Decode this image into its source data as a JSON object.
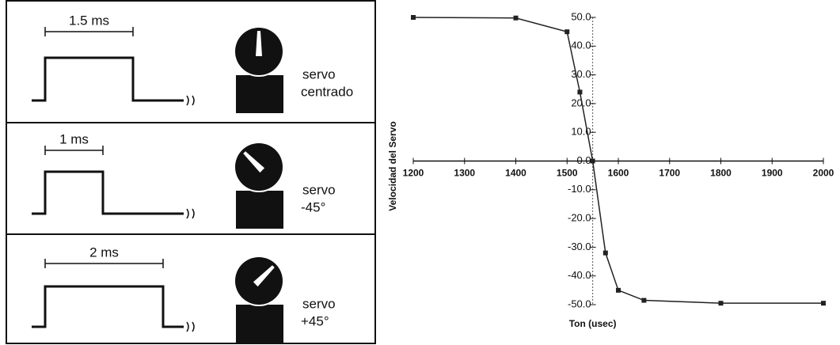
{
  "panels": [
    {
      "pulse": "1.5 ms",
      "servo": "servo",
      "position": "centrado"
    },
    {
      "pulse": "1 ms",
      "servo": "servo",
      "position": "-45°"
    },
    {
      "pulse": "2 ms",
      "servo": "servo",
      "position": "+45°"
    }
  ],
  "chart_data": {
    "type": "line",
    "x_label": "Ton (usec)",
    "y_label": "Velocidad del Servo",
    "x": [
      1200,
      1400,
      1500,
      1525,
      1550,
      1575,
      1600,
      1650,
      1800,
      2000
    ],
    "series": [
      {
        "color": "#222222",
        "values": [
          50,
          49.8,
          45,
          24,
          0,
          -32,
          -45,
          -48.5,
          -49.5,
          -49.5
        ]
      }
    ],
    "xlim": [
      1200,
      2000
    ],
    "ylim": [
      -50,
      50
    ],
    "xticks": [
      1200,
      1300,
      1400,
      1500,
      1600,
      1700,
      1800,
      1900,
      2000
    ],
    "yticks": [
      {
        "value": 50,
        "label": "50.0"
      },
      {
        "value": 40,
        "label": "40.0"
      },
      {
        "value": 30,
        "label": "30.0"
      },
      {
        "value": 20,
        "label": "20.0"
      },
      {
        "value": 10,
        "label": "10.0"
      },
      {
        "value": 0,
        "label": "0.0"
      },
      {
        "value": -10,
        "label": "-10.0"
      },
      {
        "value": -20,
        "label": "-20.0"
      },
      {
        "value": -30,
        "label": "-30.0"
      },
      {
        "value": -40,
        "label": "-40.0"
      },
      {
        "value": -50,
        "label": "-50.0"
      }
    ]
  }
}
